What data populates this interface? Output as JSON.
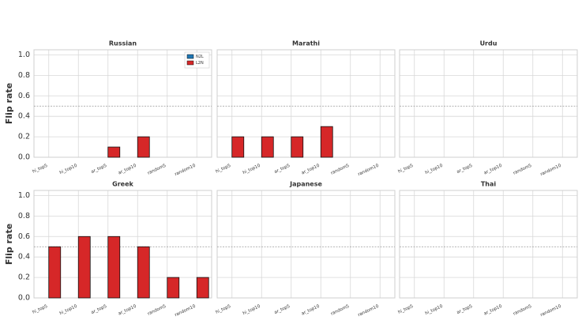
{
  "chart_data": [
    {
      "type": "bar",
      "title": "Russian",
      "ylabel": "Flip rate",
      "legend": "upper right",
      "categories": [
        "hi_top5",
        "hi_top10",
        "ar_top5",
        "ar_top10",
        "random5",
        "random10"
      ],
      "series": [
        {
          "name": "N2L",
          "color": "#1f77b4",
          "values": [
            0,
            0,
            0,
            0,
            0,
            0
          ]
        },
        {
          "name": "L2N",
          "color": "#d62728",
          "values": [
            0,
            0,
            0.1,
            0.2,
            0,
            0
          ]
        }
      ],
      "ylim": [
        0,
        1.05
      ],
      "yticks": [
        {
          "value": 0,
          "label": "0.0"
        },
        0.2,
        0.4,
        0.6,
        0.8,
        {
          "value": 1,
          "label": "1.0"
        }
      ],
      "reference_line": 0.5,
      "grid": true
    },
    {
      "type": "bar",
      "title": "Marathi",
      "categories": [
        "hi_top5",
        "hi_top10",
        "ar_top5",
        "ar_top10",
        "random5",
        "random10"
      ],
      "series": [
        {
          "name": "N2L",
          "color": "#1f77b4",
          "values": [
            0,
            0,
            0,
            0,
            0,
            0
          ]
        },
        {
          "name": "L2N",
          "color": "#d62728",
          "values": [
            0.2,
            0.2,
            0.2,
            0.3,
            0,
            0
          ]
        }
      ],
      "ylim": [
        0,
        1.05
      ],
      "yticks": [
        0,
        0.2,
        0.4,
        0.6,
        0.8,
        1
      ],
      "reference_line": 0.5,
      "grid": true
    },
    {
      "type": "bar",
      "title": "Urdu",
      "categories": [
        "hi_top5",
        "hi_top10",
        "ar_top5",
        "ar_top10",
        "random5",
        "random10"
      ],
      "series": [
        {
          "name": "N2L",
          "color": "#1f77b4",
          "values": [
            0,
            0,
            0,
            0,
            0,
            0
          ]
        },
        {
          "name": "L2N",
          "color": "#d62728",
          "values": [
            0,
            0,
            0,
            0,
            0,
            0
          ]
        }
      ],
      "ylim": [
        0,
        1.05
      ],
      "yticks": [
        0,
        0.2,
        0.4,
        0.6,
        0.8,
        1
      ],
      "reference_line": 0.5,
      "grid": true
    },
    {
      "type": "bar",
      "title": "Greek",
      "ylabel": "Flip rate",
      "categories": [
        "hi_top5",
        "hi_top10",
        "ar_top5",
        "ar_top10",
        "random5",
        "random10"
      ],
      "series": [
        {
          "name": "N2L",
          "color": "#1f77b4",
          "values": [
            0,
            0,
            0,
            0,
            0,
            0
          ]
        },
        {
          "name": "L2N",
          "color": "#d62728",
          "values": [
            0.5,
            0.6,
            0.6,
            0.5,
            0.2,
            0.2
          ]
        }
      ],
      "ylim": [
        0,
        1.05
      ],
      "yticks": [
        {
          "value": 0,
          "label": "0.0"
        },
        0.2,
        0.4,
        0.6,
        0.8,
        {
          "value": 1,
          "label": "1.0"
        }
      ],
      "reference_line": 0.5,
      "grid": true
    },
    {
      "type": "bar",
      "title": "Japanese",
      "categories": [
        "hi_top5",
        "hi_top10",
        "ar_top5",
        "ar_top10",
        "random5",
        "random10"
      ],
      "series": [
        {
          "name": "N2L",
          "color": "#1f77b4",
          "values": [
            0,
            0,
            0,
            0,
            0,
            0
          ]
        },
        {
          "name": "L2N",
          "color": "#d62728",
          "values": [
            0,
            0,
            0,
            0,
            0,
            0
          ]
        }
      ],
      "ylim": [
        0,
        1.05
      ],
      "yticks": [
        0,
        0.2,
        0.4,
        0.6,
        0.8,
        1
      ],
      "reference_line": 0.5,
      "grid": true
    },
    {
      "type": "bar",
      "title": "Thai",
      "categories": [
        "hi_top5",
        "hi_top10",
        "ar_top5",
        "ar_top10",
        "random5",
        "random10"
      ],
      "series": [
        {
          "name": "N2L",
          "color": "#1f77b4",
          "values": [
            0,
            0,
            0,
            0,
            0,
            0
          ]
        },
        {
          "name": "L2N",
          "color": "#d62728",
          "values": [
            0,
            0,
            0,
            0,
            0,
            0
          ]
        }
      ],
      "ylim": [
        0,
        1.05
      ],
      "yticks": [
        0,
        0.2,
        0.4,
        0.6,
        0.8,
        1
      ],
      "reference_line": 0.5,
      "grid": true
    }
  ]
}
